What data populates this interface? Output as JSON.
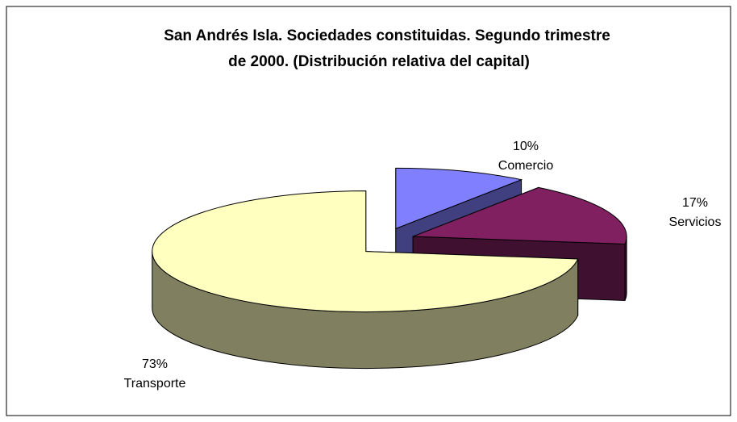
{
  "chart_data": {
    "type": "pie3d",
    "title": [
      "San Andrés Isla. Sociedades constituidas. Segundo trimestre",
      "de 2000. (Distribución relativa del capital)"
    ],
    "categories": [
      "Comercio",
      "Servicios",
      "Transporte"
    ],
    "values": [
      10,
      17,
      73
    ],
    "value_labels": [
      "10%",
      "17%",
      "73%"
    ],
    "colors": [
      "#8080ff",
      "#802060",
      "#ffffc0"
    ]
  }
}
